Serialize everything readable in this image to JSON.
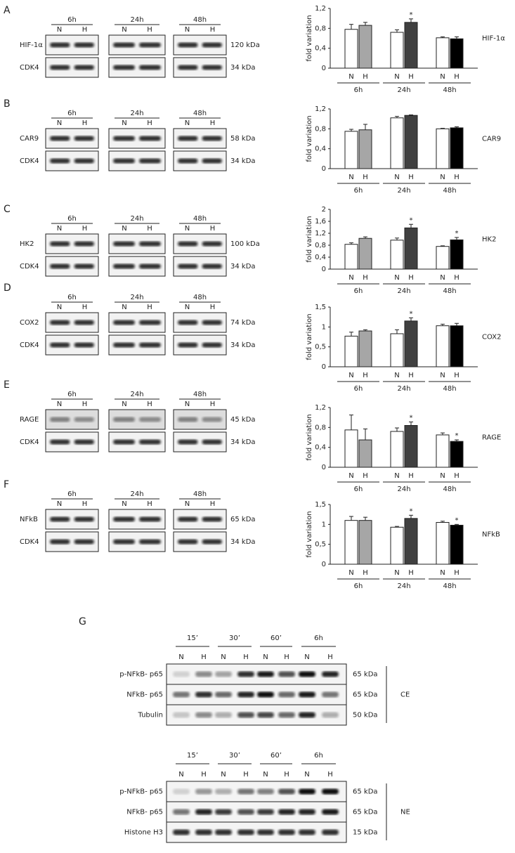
{
  "chart_data": [
    {
      "type": "bar",
      "title": "HIF-1α",
      "ylabel": "fold variation",
      "categories": [
        "6h",
        "24h",
        "48h"
      ],
      "ylim": [
        0,
        1.2
      ],
      "yticks": [
        0,
        {
          "value": 0.4,
          "label": "0,4"
        },
        {
          "value": 0.8,
          "label": "0,8"
        },
        {
          "value": 1.2,
          "label": "1,2"
        }
      ],
      "series": [
        {
          "name": "N",
          "color": "#ffffff",
          "values": [
            0.78,
            0.72,
            0.61
          ],
          "errors": [
            0.1,
            0.05,
            0.02
          ]
        },
        {
          "name": "H",
          "color": [
            "#a6a6a6",
            "#404040",
            "#000000"
          ],
          "values": [
            0.86,
            0.92,
            0.59
          ],
          "errors": [
            0.06,
            0.07,
            0.04
          ],
          "markers": [
            null,
            "*",
            null
          ]
        }
      ]
    },
    {
      "type": "bar",
      "title": "CAR9",
      "ylabel": "fold variation",
      "categories": [
        "6h",
        "24h",
        "48h"
      ],
      "ylim": [
        0,
        1.2
      ],
      "yticks": [
        0,
        {
          "value": 0.4,
          "label": "0,4"
        },
        {
          "value": 0.8,
          "label": "0,8"
        },
        {
          "value": 1.2,
          "label": "1,2"
        }
      ],
      "series": [
        {
          "name": "N",
          "color": "#ffffff",
          "values": [
            0.75,
            1.02,
            0.8
          ],
          "errors": [
            0.04,
            0.03,
            0.01
          ]
        },
        {
          "name": "H",
          "color": [
            "#a6a6a6",
            "#404040",
            "#000000"
          ],
          "values": [
            0.78,
            1.07,
            0.82
          ],
          "errors": [
            0.11,
            0.01,
            0.02
          ]
        }
      ]
    },
    {
      "type": "bar",
      "title": "HK2",
      "ylabel": "fold variation",
      "categories": [
        "6h",
        "24h",
        "48h"
      ],
      "ylim": [
        0,
        2
      ],
      "yticks": [
        0,
        {
          "value": 0.4,
          "label": "0,4"
        },
        {
          "value": 0.8,
          "label": "0,8"
        },
        {
          "value": 1.2,
          "label": "1,2"
        },
        {
          "value": 1.6,
          "label": "1,6"
        },
        2
      ],
      "series": [
        {
          "name": "N",
          "color": "#ffffff",
          "values": [
            0.83,
            0.97,
            0.76
          ],
          "errors": [
            0.05,
            0.07,
            0.02
          ]
        },
        {
          "name": "H",
          "color": [
            "#a6a6a6",
            "#404040",
            "#000000"
          ],
          "values": [
            1.03,
            1.38,
            0.98
          ],
          "errors": [
            0.05,
            0.12,
            0.08
          ],
          "markers": [
            null,
            "*",
            "*"
          ]
        }
      ]
    },
    {
      "type": "bar",
      "title": "COX2",
      "ylabel": "fold variation",
      "categories": [
        "6h",
        "24h",
        "48h"
      ],
      "ylim": [
        0,
        1.5
      ],
      "yticks": [
        0,
        {
          "value": 0.5,
          "label": "0,5"
        },
        1,
        {
          "value": 1.5,
          "label": "1,5"
        }
      ],
      "series": [
        {
          "name": "N",
          "color": "#ffffff",
          "values": [
            0.77,
            0.83,
            1.03
          ],
          "errors": [
            0.1,
            0.1,
            0.04
          ]
        },
        {
          "name": "H",
          "color": [
            "#a6a6a6",
            "#404040",
            "#000000"
          ],
          "values": [
            0.9,
            1.15,
            1.03
          ],
          "errors": [
            0.03,
            0.08,
            0.06
          ],
          "markers": [
            null,
            "*",
            null
          ]
        }
      ]
    },
    {
      "type": "bar",
      "title": "RAGE",
      "ylabel": "fold variation",
      "categories": [
        "6h",
        "24h",
        "48h"
      ],
      "ylim": [
        0,
        1.2
      ],
      "yticks": [
        0,
        {
          "value": 0.4,
          "label": "0,4"
        },
        {
          "value": 0.8,
          "label": "0,8"
        },
        {
          "value": 1.2,
          "label": "1,2"
        }
      ],
      "series": [
        {
          "name": "N",
          "color": "#ffffff",
          "values": [
            0.75,
            0.72,
            0.65
          ],
          "errors": [
            0.3,
            0.07,
            0.04
          ]
        },
        {
          "name": "H",
          "color": [
            "#a6a6a6",
            "#404040",
            "#000000"
          ],
          "values": [
            0.55,
            0.84,
            0.52
          ],
          "errors": [
            0.22,
            0.07,
            0.03
          ],
          "markers": [
            null,
            "*",
            "*"
          ]
        }
      ]
    },
    {
      "type": "bar",
      "title": "NFkB",
      "ylabel": "fold variation",
      "categories": [
        "6h",
        "24h",
        "48h"
      ],
      "ylim": [
        0,
        1.5
      ],
      "yticks": [
        0,
        {
          "value": 0.5,
          "label": "0,5"
        },
        1,
        {
          "value": 1.5,
          "label": "1,5"
        }
      ],
      "series": [
        {
          "name": "N",
          "color": "#ffffff",
          "values": [
            1.1,
            0.93,
            1.05
          ],
          "errors": [
            0.1,
            0.02,
            0.03
          ]
        },
        {
          "name": "H",
          "color": [
            "#a6a6a6",
            "#404040",
            "#000000"
          ],
          "values": [
            1.1,
            1.15,
            0.98
          ],
          "errors": [
            0.08,
            0.08,
            0.02
          ],
          "markers": [
            null,
            "*",
            "*"
          ]
        }
      ]
    }
  ],
  "blots": [
    {
      "label": "A",
      "times": [
        "6h",
        "24h",
        "48h"
      ],
      "lanes": [
        "N",
        "H"
      ],
      "rows": [
        {
          "name": "HIF-1α",
          "size": "120 kDa"
        },
        {
          "name": "CDK4",
          "size": "34 kDa"
        }
      ]
    },
    {
      "label": "B",
      "times": [
        "6h",
        "24h",
        "48h"
      ],
      "lanes": [
        "N",
        "H"
      ],
      "rows": [
        {
          "name": "CAR9",
          "size": "58 kDa"
        },
        {
          "name": "CDK4",
          "size": "34 kDa"
        }
      ]
    },
    {
      "label": "C",
      "times": [
        "6h",
        "24h",
        "48h"
      ],
      "lanes": [
        "N",
        "H"
      ],
      "rows": [
        {
          "name": "HK2",
          "size": "100 kDa"
        },
        {
          "name": "CDK4",
          "size": "34 kDa"
        }
      ]
    },
    {
      "label": "D",
      "times": [
        "6h",
        "24h",
        "48h"
      ],
      "lanes": [
        "N",
        "H"
      ],
      "rows": [
        {
          "name": "COX2",
          "size": "74 kDa"
        },
        {
          "name": "CDK4",
          "size": "34 kDa"
        }
      ]
    },
    {
      "label": "E",
      "times": [
        "6h",
        "24h",
        "48h"
      ],
      "lanes": [
        "N",
        "H"
      ],
      "rows": [
        {
          "name": "RAGE",
          "size": "45 kDa"
        },
        {
          "name": "CDK4",
          "size": "34 kDa"
        }
      ]
    },
    {
      "label": "F",
      "times": [
        "6h",
        "24h",
        "48h"
      ],
      "lanes": [
        "N",
        "H"
      ],
      "rows": [
        {
          "name": "NFkB",
          "size": "65 kDa"
        },
        {
          "name": "CDK4",
          "size": "34 kDa"
        }
      ]
    }
  ],
  "panel_g": {
    "label": "G",
    "blocks": [
      {
        "fraction": "CE",
        "times": [
          "15’",
          "30’",
          "60’",
          "6h"
        ],
        "lanes": [
          "N",
          "H"
        ],
        "rows": [
          {
            "name": "p-NFkB- p65",
            "size": "65 kDa"
          },
          {
            "name": "NFkB- p65",
            "size": "65 kDa"
          },
          {
            "name": "Tubulin",
            "size": "50 kDa"
          }
        ]
      },
      {
        "fraction": "NE",
        "times": [
          "15’",
          "30’",
          "60’",
          "6h"
        ],
        "lanes": [
          "N",
          "H"
        ],
        "rows": [
          {
            "name": "p-NFkB- p65",
            "size": "65 kDa"
          },
          {
            "name": "NFkB- p65",
            "size": "65 kDa"
          },
          {
            "name": "Histone H3",
            "size": "15 kDa"
          }
        ]
      }
    ]
  }
}
